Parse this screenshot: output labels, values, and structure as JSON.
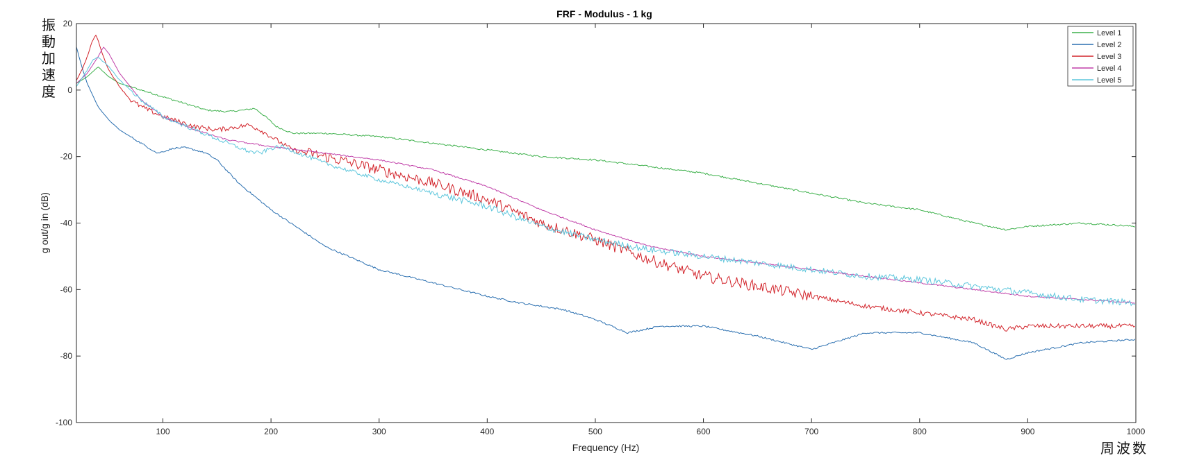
{
  "chart_data": {
    "type": "line",
    "title": "FRF - Modulus - 1 kg",
    "xlabel": "Frequency (Hz)",
    "ylabel": "g out/g in (dB)",
    "xlim": [
      20,
      1000
    ],
    "ylim": [
      -100,
      20
    ],
    "xticks": [
      100,
      200,
      300,
      400,
      500,
      600,
      700,
      800,
      900,
      1000
    ],
    "yticks": [
      -100,
      -80,
      -60,
      -40,
      -20,
      0,
      20
    ],
    "grid": false,
    "legend_position": "top-right",
    "annotations": {
      "y_side": "振動加速度",
      "x_side": "周波数"
    },
    "series": [
      {
        "name": "Level 1",
        "color": "#3cb04a",
        "x": [
          20,
          30,
          40,
          50,
          60,
          80,
          100,
          120,
          140,
          160,
          175,
          185,
          195,
          205,
          220,
          250,
          300,
          350,
          400,
          450,
          500,
          550,
          600,
          650,
          700,
          750,
          800,
          850,
          880,
          900,
          950,
          1000
        ],
        "y": [
          2,
          4,
          7,
          4,
          2,
          0,
          -2,
          -4,
          -6,
          -6.5,
          -6,
          -5.5,
          -8,
          -11,
          -13,
          -13,
          -14,
          -16,
          -18,
          -20,
          -21,
          -23,
          -25,
          -28,
          -31,
          -34,
          -36,
          -40,
          -42,
          -41,
          -40,
          -41
        ]
      },
      {
        "name": "Level 2",
        "color": "#2a6fb0",
        "x": [
          20,
          25,
          30,
          40,
          50,
          60,
          70,
          80,
          90,
          95,
          100,
          110,
          120,
          130,
          140,
          150,
          170,
          200,
          250,
          300,
          350,
          400,
          430,
          450,
          470,
          500,
          530,
          560,
          600,
          650,
          700,
          750,
          800,
          850,
          880,
          900,
          950,
          1000
        ],
        "y": [
          13,
          7,
          2,
          -5,
          -9,
          -12,
          -14,
          -16,
          -18,
          -19,
          -18.5,
          -17.5,
          -17.3,
          -18,
          -19,
          -21,
          -28,
          -36,
          -47,
          -54,
          -58,
          -62,
          -64,
          -65,
          -66,
          -69,
          -73,
          -71,
          -71,
          -74,
          -78,
          -73,
          -73,
          -76,
          -81,
          -79,
          -76,
          -75
        ]
      },
      {
        "name": "Level 3",
        "color": "#d2232a",
        "x": [
          20,
          25,
          30,
          35,
          38,
          40,
          45,
          50,
          60,
          70,
          80,
          100,
          130,
          150,
          170,
          180,
          190,
          200,
          220,
          250,
          300,
          350,
          400,
          450,
          500,
          550,
          600,
          650,
          700,
          750,
          800,
          850,
          880,
          900,
          950,
          1000
        ],
        "y": [
          3,
          6,
          10,
          15,
          16.5,
          15,
          10,
          6,
          1,
          -3,
          -5,
          -8,
          -11,
          -12,
          -11,
          -10.5,
          -12,
          -14,
          -18,
          -20,
          -24,
          -28,
          -33,
          -40,
          -45,
          -51,
          -56,
          -59,
          -62,
          -65,
          -67,
          -69,
          -72,
          -71,
          -71,
          -71
        ]
      },
      {
        "name": "Level 4",
        "color": "#c03fa8",
        "x": [
          20,
          30,
          40,
          45,
          50,
          60,
          80,
          100,
          130,
          160,
          180,
          200,
          250,
          300,
          350,
          400,
          450,
          500,
          550,
          600,
          650,
          700,
          750,
          800,
          850,
          900,
          950,
          1000
        ],
        "y": [
          2,
          5,
          10,
          13,
          11,
          5,
          -3,
          -8,
          -12,
          -15,
          -16,
          -17,
          -19,
          -21,
          -24,
          -29,
          -36,
          -42,
          -47,
          -50,
          -52,
          -54,
          -56,
          -58,
          -60,
          -62,
          -63,
          -64
        ]
      },
      {
        "name": "Level 5",
        "color": "#5cc6dc",
        "x": [
          20,
          30,
          35,
          40,
          50,
          60,
          80,
          100,
          130,
          160,
          180,
          190,
          200,
          210,
          250,
          300,
          350,
          400,
          450,
          500,
          550,
          600,
          650,
          700,
          750,
          800,
          850,
          900,
          950,
          1000
        ],
        "y": [
          1,
          6,
          9,
          10,
          7,
          3,
          -3,
          -8,
          -12,
          -16,
          -18.5,
          -19,
          -17.5,
          -17,
          -22,
          -27,
          -31,
          -35,
          -41,
          -45,
          -48,
          -50,
          -52,
          -54,
          -56,
          -57,
          -59,
          -61,
          -63,
          -64
        ]
      }
    ]
  }
}
